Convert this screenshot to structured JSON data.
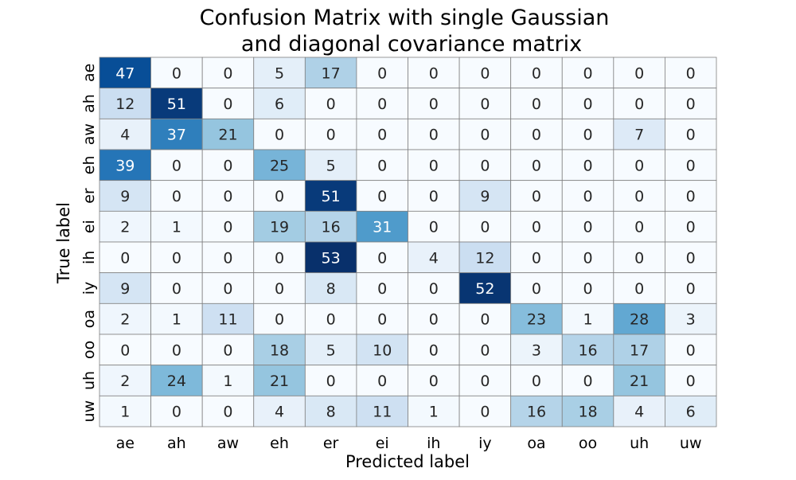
{
  "chart_data": {
    "type": "heatmap",
    "title_lines": [
      "Confusion Matrix with single Gaussian",
      "and diagonal covariance matrix"
    ],
    "xlabel": "Predicted label",
    "ylabel": "True label",
    "x_categories": [
      "ae",
      "ah",
      "aw",
      "eh",
      "er",
      "ei",
      "ih",
      "iy",
      "oa",
      "oo",
      "uh",
      "uw"
    ],
    "y_categories": [
      "ae",
      "ah",
      "aw",
      "eh",
      "er",
      "ei",
      "ih",
      "iy",
      "oa",
      "oo",
      "uh",
      "uw"
    ],
    "values": [
      [
        47,
        0,
        0,
        5,
        17,
        0,
        0,
        0,
        0,
        0,
        0,
        0
      ],
      [
        12,
        51,
        0,
        6,
        0,
        0,
        0,
        0,
        0,
        0,
        0,
        0
      ],
      [
        4,
        37,
        21,
        0,
        0,
        0,
        0,
        0,
        0,
        0,
        7,
        0
      ],
      [
        39,
        0,
        0,
        25,
        5,
        0,
        0,
        0,
        0,
        0,
        0,
        0
      ],
      [
        9,
        0,
        0,
        0,
        51,
        0,
        0,
        9,
        0,
        0,
        0,
        0
      ],
      [
        2,
        1,
        0,
        19,
        16,
        31,
        0,
        0,
        0,
        0,
        0,
        0
      ],
      [
        0,
        0,
        0,
        0,
        53,
        0,
        4,
        12,
        0,
        0,
        0,
        0
      ],
      [
        9,
        0,
        0,
        0,
        8,
        0,
        0,
        52,
        0,
        0,
        0,
        0
      ],
      [
        2,
        1,
        11,
        0,
        0,
        0,
        0,
        0,
        23,
        1,
        28,
        3
      ],
      [
        0,
        0,
        0,
        18,
        5,
        10,
        0,
        0,
        3,
        16,
        17,
        0
      ],
      [
        2,
        24,
        1,
        21,
        0,
        0,
        0,
        0,
        0,
        0,
        21,
        0
      ],
      [
        1,
        0,
        0,
        4,
        8,
        11,
        1,
        0,
        16,
        18,
        4,
        6
      ]
    ],
    "colormap": "Blues",
    "value_range": [
      0,
      53
    ],
    "colorbar": false,
    "cell_border_color": "#808080"
  }
}
